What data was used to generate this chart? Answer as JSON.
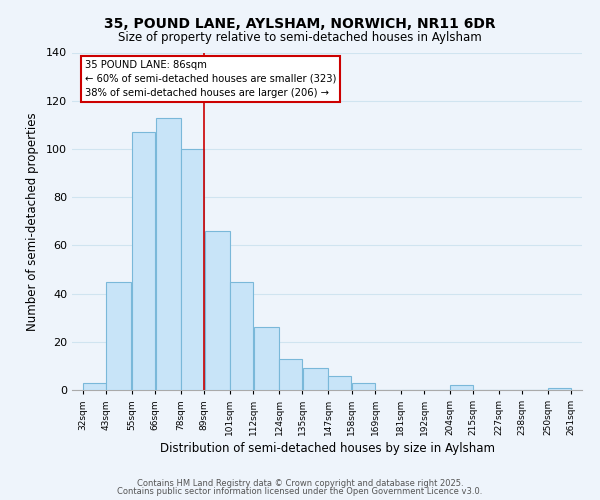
{
  "title": "35, POUND LANE, AYLSHAM, NORWICH, NR11 6DR",
  "subtitle": "Size of property relative to semi-detached houses in Aylsham",
  "xlabel": "Distribution of semi-detached houses by size in Aylsham",
  "ylabel": "Number of semi-detached properties",
  "bar_left_edges": [
    32,
    43,
    55,
    66,
    78,
    89,
    101,
    112,
    124,
    135,
    147,
    158,
    169,
    181,
    192,
    204,
    215,
    227,
    238,
    250
  ],
  "bar_widths": [
    11,
    12,
    11,
    12,
    11,
    12,
    11,
    12,
    11,
    12,
    11,
    11,
    12,
    11,
    12,
    11,
    12,
    11,
    12,
    11
  ],
  "bar_heights": [
    3,
    45,
    107,
    113,
    100,
    66,
    45,
    26,
    13,
    9,
    6,
    3,
    0,
    0,
    0,
    2,
    0,
    0,
    0,
    1
  ],
  "bar_color": "#c8e4f8",
  "bar_edge_color": "#7ab8d9",
  "tick_labels": [
    "32sqm",
    "43sqm",
    "55sqm",
    "66sqm",
    "78sqm",
    "89sqm",
    "101sqm",
    "112sqm",
    "124sqm",
    "135sqm",
    "147sqm",
    "158sqm",
    "169sqm",
    "181sqm",
    "192sqm",
    "204sqm",
    "215sqm",
    "227sqm",
    "238sqm",
    "250sqm",
    "261sqm"
  ],
  "tick_positions": [
    32,
    43,
    55,
    66,
    78,
    89,
    101,
    112,
    124,
    135,
    147,
    158,
    169,
    181,
    192,
    204,
    215,
    227,
    238,
    250,
    261
  ],
  "ylim": [
    0,
    140
  ],
  "xlim": [
    27,
    266
  ],
  "property_line_x": 89,
  "annotation_title": "35 POUND LANE: 86sqm",
  "annotation_line1": "← 60% of semi-detached houses are smaller (323)",
  "annotation_line2": "38% of semi-detached houses are larger (206) →",
  "footer1": "Contains HM Land Registry data © Crown copyright and database right 2025.",
  "footer2": "Contains public sector information licensed under the Open Government Licence v3.0.",
  "background_color": "#eef4fb",
  "grid_color": "#d0e4f0",
  "yticks": [
    0,
    20,
    40,
    60,
    80,
    100,
    120,
    140
  ]
}
